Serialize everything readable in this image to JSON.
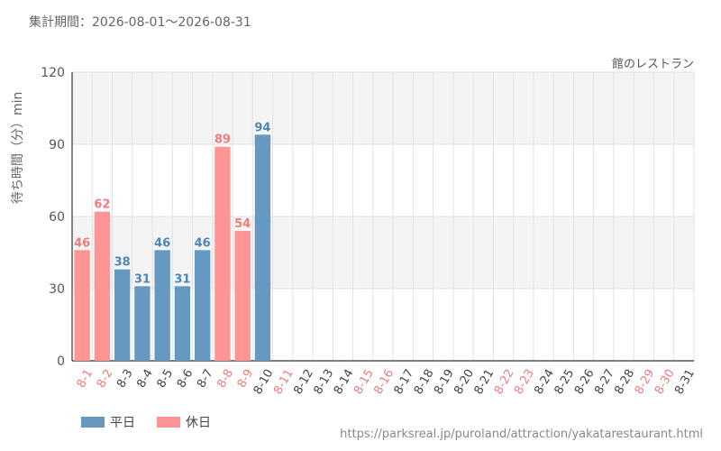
{
  "header": {
    "period_label": "集計期間：2026-08-01～2026-08-31",
    "facility_name": "館のレストラン"
  },
  "footer": {
    "source_url": "https://parksreal.jp/puroland/attraction/yakatarestaurant.html"
  },
  "colors": {
    "weekday": "#6699c2",
    "holiday": "#ff9494",
    "weekday_label": "#4f86b6",
    "holiday_label": "#f07c7c",
    "band": "#f4f4f4",
    "grid": "#e2e2e2"
  },
  "chart_data": {
    "type": "bar",
    "ylabel": "待ち時間（分）min",
    "ylim": [
      0,
      120
    ],
    "yticks": [
      0,
      30,
      60,
      90,
      120
    ],
    "grid": true,
    "legend_position": "bottom-left",
    "legend": [
      {
        "key": "weekday",
        "label": "平日"
      },
      {
        "key": "holiday",
        "label": "休日"
      }
    ],
    "categories": [
      "8-1",
      "8-2",
      "8-3",
      "8-4",
      "8-5",
      "8-6",
      "8-7",
      "8-8",
      "8-9",
      "8-10",
      "8-11",
      "8-12",
      "8-13",
      "8-14",
      "8-15",
      "8-16",
      "8-17",
      "8-18",
      "8-19",
      "8-20",
      "8-21",
      "8-22",
      "8-23",
      "8-24",
      "8-25",
      "8-26",
      "8-27",
      "8-28",
      "8-29",
      "8-30",
      "8-31"
    ],
    "values": [
      46,
      62,
      38,
      31,
      46,
      31,
      46,
      89,
      54,
      94,
      null,
      null,
      null,
      null,
      null,
      null,
      null,
      null,
      null,
      null,
      null,
      null,
      null,
      null,
      null,
      null,
      null,
      null,
      null,
      null,
      null
    ],
    "day_types": [
      "holiday",
      "holiday",
      "weekday",
      "weekday",
      "weekday",
      "weekday",
      "weekday",
      "holiday",
      "holiday",
      "weekday",
      "holiday",
      "weekday",
      "weekday",
      "weekday",
      "holiday",
      "holiday",
      "weekday",
      "weekday",
      "weekday",
      "weekday",
      "weekday",
      "holiday",
      "holiday",
      "weekday",
      "weekday",
      "weekday",
      "weekday",
      "weekday",
      "holiday",
      "holiday",
      "weekday"
    ]
  }
}
